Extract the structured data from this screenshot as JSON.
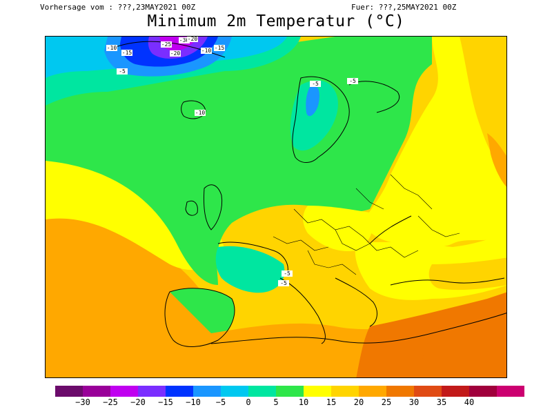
{
  "header": {
    "run_text": "Vorhersage vom : ???,23MAY2021 00Z",
    "valid_text": "Fuer: ???,25MAY2021 00Z"
  },
  "title": "Minimum 2m Temperatur (°C)",
  "legend": {
    "colors": [
      "#6b0b6b",
      "#990099",
      "#c000f0",
      "#7a2eff",
      "#0033ff",
      "#1a96ff",
      "#00c8f0",
      "#00e6a0",
      "#2ee64a",
      "#ffff00",
      "#ffd400",
      "#ffa800",
      "#f07800",
      "#e04b14",
      "#c21a1a",
      "#a0003c",
      "#cc0070"
    ],
    "labels": [
      "-30",
      "-25",
      "-20",
      "-15",
      "-10",
      "-5",
      "0",
      "5",
      "10",
      "15",
      "20",
      "25",
      "30",
      "35",
      "40"
    ]
  },
  "map": {
    "contour_labels": [
      "-30",
      "-25",
      "-20",
      "-15",
      "-10",
      "-5",
      "-10",
      "-15",
      "-20",
      "-10",
      "-5",
      "-5",
      "-5",
      "-5"
    ]
  }
}
